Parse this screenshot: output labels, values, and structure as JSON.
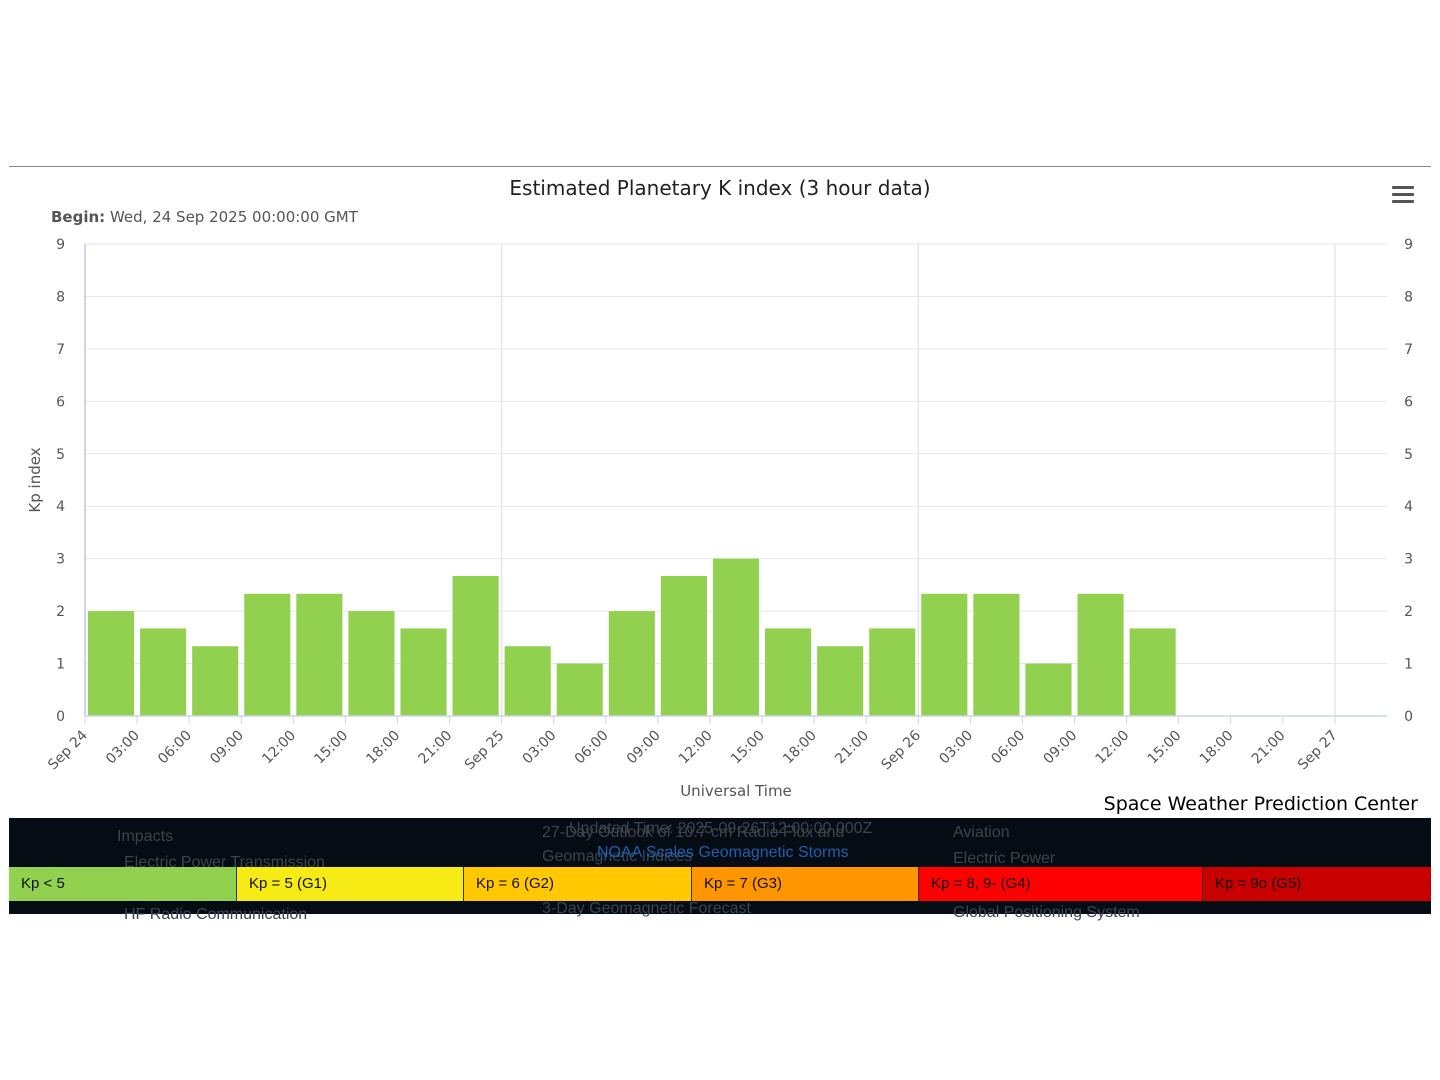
{
  "chart_data": {
    "type": "bar",
    "title": "Estimated Planetary K index (3 hour data)",
    "subtitle_label": "Begin:",
    "subtitle_value": "Wed, 24 Sep 2025 00:00:00 GMT",
    "xlabel": "Universal Time",
    "ylabel": "Kp index",
    "ylim": [
      0,
      9
    ],
    "yticks": [
      "0",
      "1",
      "2",
      "3",
      "4",
      "5",
      "6",
      "7",
      "8",
      "9"
    ],
    "xticks": [
      "Sep 24",
      "03:00",
      "06:00",
      "09:00",
      "12:00",
      "15:00",
      "18:00",
      "21:00",
      "Sep 25",
      "03:00",
      "06:00",
      "09:00",
      "12:00",
      "15:00",
      "18:00",
      "21:00",
      "Sep 26",
      "03:00",
      "06:00",
      "09:00",
      "12:00",
      "15:00",
      "18:00",
      "21:00",
      "Sep 27"
    ],
    "values": [
      2.0,
      1.67,
      1.33,
      2.33,
      2.33,
      2.0,
      1.67,
      2.67,
      1.33,
      1.0,
      2.0,
      2.67,
      3.0,
      1.67,
      1.33,
      1.67,
      2.33,
      2.33,
      1.0,
      2.33,
      1.67
    ],
    "bar_color": "#92d050",
    "grid": true,
    "right_axis": true
  },
  "credit": "Space Weather Prediction Center",
  "menu_icon": "hamburger-menu-icon",
  "background_overlay": {
    "impacts": "Impacts",
    "electric_power_transmission": "Electric Power Transmission",
    "hf_radio": "HF Radio Communication",
    "outlook": "27-Day Outlook of 10.7 cm Radio Flux and",
    "geomagnetic_indices": "Geomagnetic Indices",
    "forecast": "3-Day Geomagnetic Forecast",
    "updated": "Updated Time: 2025-09-26T12:00:00.000Z",
    "noaa_scales": "NOAA Scales Geomagnetic Storms",
    "aviation": "Aviation",
    "electric_power": "Electric Power",
    "gps": "Global Positioning System"
  },
  "scale_legend": [
    {
      "label": "Kp < 5",
      "color": "#92d050"
    },
    {
      "label": "Kp = 5 (G1)",
      "color": "#f6eb14"
    },
    {
      "label": "Kp = 6 (G2)",
      "color": "#ffc800"
    },
    {
      "label": "Kp = 7 (G3)",
      "color": "#ff9600"
    },
    {
      "label": "Kp = 8, 9- (G4)",
      "color": "#ff0000"
    },
    {
      "label": "Kp = 9o (G5)",
      "color": "#c80000"
    }
  ]
}
